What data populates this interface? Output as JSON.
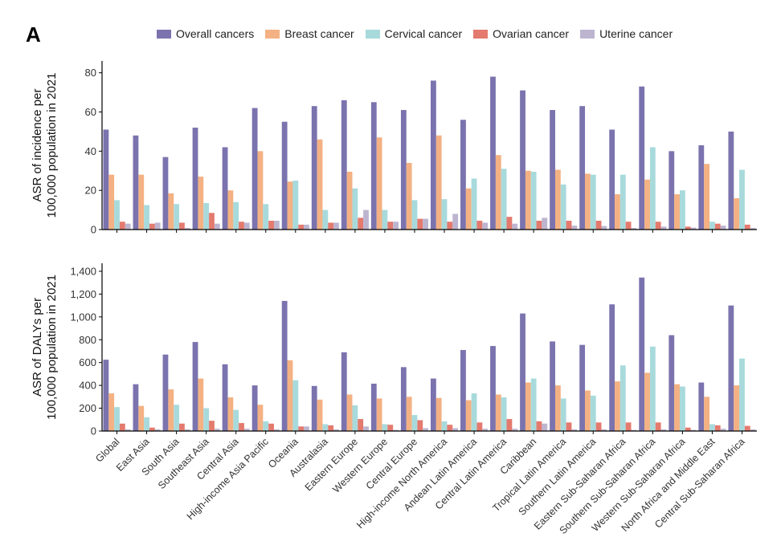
{
  "panel_label": "A",
  "colors": {
    "Overall cancers": "#7b73ae",
    "Breast cancer": "#f4b183",
    "Cervical cancer": "#a8dadc",
    "Ovarian cancer": "#e47a6e",
    "Uterine cancer": "#bdb5d0"
  },
  "chart_data": [
    {
      "type": "bar",
      "ylabel": "ASR of incidence per\n100,000 population in 2021",
      "ylim": [
        0,
        86
      ],
      "yticks": [
        0,
        20,
        40,
        60,
        80
      ],
      "legend_position": "top",
      "grid": false,
      "categories": [
        "Global",
        "East Asia",
        "South Asia",
        "Southeast Asia",
        "Central Asia",
        "High-income Asia Pacific",
        "Oceania",
        "Australasia",
        "Eastern Europe",
        "Western Europe",
        "Central Europe",
        "High-income North America",
        "Andean Latin America",
        "Central Latin America",
        "Caribbean",
        "Tropical Latin America",
        "Southern Latin America",
        "Eastern Sub-Saharan Africa",
        "Southern Sub-Saharan Africa",
        "Western Sub-Saharan Africa",
        "North Africa and Middle East",
        "Central Sub-Saharan Africa"
      ],
      "series": [
        {
          "name": "Overall cancers",
          "values": [
            51,
            48,
            37,
            52,
            42,
            62,
            55,
            63,
            66,
            65,
            61,
            76,
            56,
            78,
            71,
            61,
            63,
            51,
            73,
            40,
            43,
            50
          ]
        },
        {
          "name": "Breast cancer",
          "values": [
            28,
            28,
            18.5,
            27,
            20,
            40,
            24.5,
            46,
            29.5,
            47,
            34,
            48,
            21,
            38,
            30,
            30.5,
            28.5,
            18,
            25.5,
            18,
            33.5,
            16
          ]
        },
        {
          "name": "Cervical cancer",
          "values": [
            15,
            12.5,
            13,
            13.5,
            14,
            13,
            25,
            10,
            21,
            10,
            15,
            15.5,
            26,
            31,
            29.5,
            23,
            28,
            28,
            42,
            20,
            4,
            30.5
          ]
        },
        {
          "name": "Ovarian cancer",
          "values": [
            4,
            3,
            3.5,
            8.5,
            4,
            4.5,
            2.5,
            3.5,
            6,
            4,
            5.5,
            4,
            4.5,
            6.5,
            4.5,
            4.5,
            4.5,
            4,
            4,
            1.5,
            3,
            2.5
          ]
        },
        {
          "name": "Uterine cancer",
          "values": [
            3,
            3.5,
            0.8,
            3,
            3.5,
            4.5,
            2.5,
            3.5,
            10,
            4,
            5.5,
            8,
            3.5,
            3,
            6,
            2,
            1.8,
            0.8,
            1.5,
            1,
            2,
            0.8
          ]
        }
      ]
    },
    {
      "type": "bar",
      "ylabel": "ASR of DALYs per\n100,000 population in 2021",
      "ylim": [
        0,
        1470
      ],
      "yticks": [
        0,
        200,
        400,
        600,
        800,
        1000,
        1200,
        1400
      ],
      "ytick_labels": [
        "0",
        "200",
        "400",
        "600",
        "800",
        "1,000",
        "1,200",
        "1,400"
      ],
      "legend_position": "top",
      "grid": false,
      "categories": [
        "Global",
        "East Asia",
        "South Asia",
        "Southeast Asia",
        "Central Asia",
        "High-income Asia Pacific",
        "Oceania",
        "Australasia",
        "Eastern Europe",
        "Western Europe",
        "Central Europe",
        "High-income North America",
        "Andean Latin America",
        "Central Latin America",
        "Caribbean",
        "Tropical Latin America",
        "Southern Latin America",
        "Eastern Sub-Saharan Africa",
        "Southern Sub-Saharan Africa",
        "Western Sub-Saharan Africa",
        "North Africa and Middle East",
        "Central Sub-Saharan Africa"
      ],
      "series": [
        {
          "name": "Overall cancers",
          "values": [
            625,
            410,
            670,
            780,
            585,
            400,
            1140,
            395,
            690,
            415,
            560,
            460,
            710,
            745,
            1030,
            785,
            755,
            1110,
            1345,
            840,
            425,
            1100
          ]
        },
        {
          "name": "Breast cancer",
          "values": [
            330,
            220,
            365,
            460,
            295,
            230,
            620,
            275,
            320,
            285,
            300,
            290,
            270,
            320,
            425,
            400,
            355,
            435,
            510,
            410,
            300,
            400
          ]
        },
        {
          "name": "Cervical cancer",
          "values": [
            210,
            120,
            230,
            200,
            185,
            85,
            445,
            60,
            225,
            60,
            140,
            85,
            330,
            295,
            460,
            285,
            310,
            575,
            740,
            390,
            60,
            635
          ]
        },
        {
          "name": "Ovarian cancer",
          "values": [
            65,
            30,
            65,
            90,
            70,
            65,
            40,
            50,
            105,
            55,
            95,
            55,
            75,
            105,
            85,
            75,
            75,
            75,
            75,
            30,
            50,
            45
          ]
        },
        {
          "name": "Uterine cancer",
          "values": [
            15,
            15,
            15,
            20,
            20,
            15,
            40,
            15,
            40,
            10,
            25,
            25,
            20,
            20,
            65,
            15,
            15,
            10,
            15,
            10,
            20,
            15
          ]
        }
      ]
    }
  ]
}
